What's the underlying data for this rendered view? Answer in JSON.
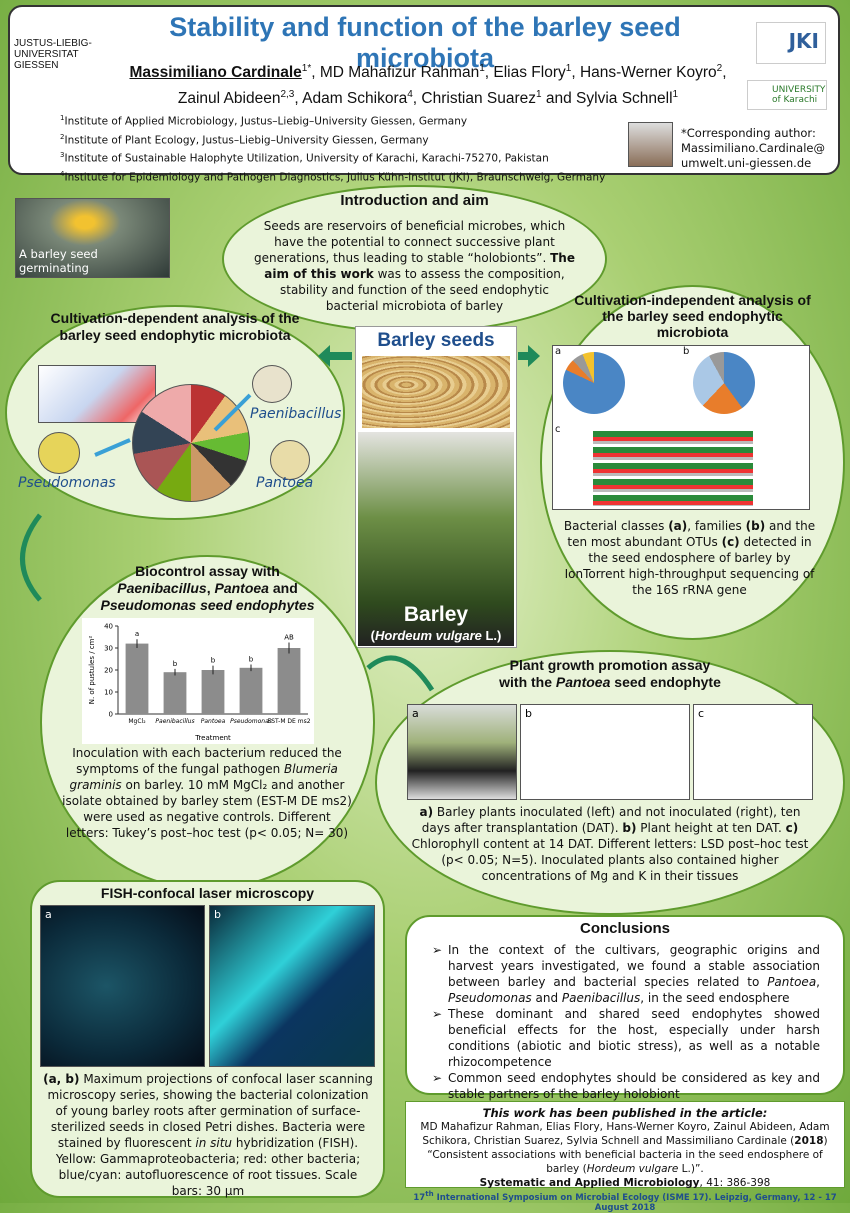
{
  "header": {
    "title": "Stability and function of the barley seed microbiota",
    "logo_left": "JUSTUS-LIEBIG-UNIVERSITAT GIESSEN",
    "logo_jki": "JKI",
    "logo_karachi": "UNIVERSITY of Karachi",
    "authors": [
      {
        "name": "Massimiliano Cardinale",
        "sup": "1*",
        "after": ", "
      },
      {
        "name": "MD Mahafizur Rahman",
        "sup": "1",
        "after": ", "
      },
      {
        "name": "Elias Flory",
        "sup": "1",
        "after": ", "
      },
      {
        "name": "Hans-Werner Koyro",
        "sup": "2",
        "after": ", "
      },
      {
        "name": "Zainul Abideen",
        "sup": "2,3",
        "after": ", "
      },
      {
        "name": "Adam Schikora",
        "sup": "4",
        "after": ", "
      },
      {
        "name": "Christian Suarez",
        "sup": "1",
        "after": " and "
      },
      {
        "name": "Sylvia Schnell",
        "sup": "1",
        "after": ""
      }
    ],
    "affiliations": [
      {
        "num": "1",
        "text": "Institute of Applied Microbiology, Justus–Liebig–University Giessen, Germany"
      },
      {
        "num": "2",
        "text": "Institute of Plant Ecology, Justus–Liebig–University Giessen, Germany"
      },
      {
        "num": "3",
        "text": "Institute of Sustainable Halophyte Utilization, University of Karachi, Karachi-75270, Pakistan"
      },
      {
        "num": "4",
        "text": "Institute for Epidemiology and Pathogen Diagnostics, Julius Kühn-Institut (JKI), Braunschweig, Germany"
      }
    ],
    "corresponding": [
      "*Corresponding author:",
      "Massimiliano.Cardinale@",
      "umwelt.uni-giessen.de"
    ]
  },
  "seed_photo_caption": "A barley seed germinating",
  "intro": {
    "title": "Introduction and aim",
    "text": "Seeds are reservoirs of beneficial microbes, which have the potential to connect successive plant generations, thus leading to stable “holobionts”.",
    "aim_bold": "The aim of this work",
    "aim": " was to assess the composition, stability and function of the seed endophytic bacterial microbiota of barley"
  },
  "cultivation_dependent": {
    "title": "Cultivation-dependent analysis of the barley seed endophytic microbiota",
    "labels": [
      "Paenibacillus",
      "Pseudomonas",
      "Pantoea"
    ]
  },
  "cultivation_independent": {
    "title": "Cultivation-independent analysis of the barley seed endophytic microbiota",
    "panels": [
      "a",
      "b",
      "c"
    ],
    "caption": [
      "Bacterial classes ",
      "(a)",
      ", families ",
      "(b)",
      " and the ten  most abundant OTUs ",
      "(c)",
      " detected in the seed endosphere of barley by IonTorrent high-throughput sequencing of the 16S rRNA gene"
    ]
  },
  "center": {
    "seeds_label": "Barley seeds",
    "plant_label": "Barley",
    "latin_open": "(",
    "latin": "Hordeum vulgare",
    "latin_close": " L.)"
  },
  "biocontrol": {
    "title": [
      "Biocontrol assay with",
      "Paenibacillus",
      ", ",
      "Pantoea",
      " and",
      "Pseudomonas",
      " seed endophytes"
    ],
    "chart": {
      "type": "bar",
      "categories": [
        "MgCl₂",
        "Paenibacillus",
        "Pantoea",
        "Pseudomonas",
        "EST-M DE ms2"
      ],
      "values": [
        32,
        19,
        20,
        21,
        30
      ],
      "errors": [
        2,
        1.5,
        2,
        1.5,
        2.5
      ],
      "letters": [
        "a",
        "b",
        "b",
        "b",
        "AB"
      ],
      "ylabel": "N. of pustules / cm²",
      "xlabel": "Treatment",
      "ylim": [
        0,
        40
      ],
      "yticks": [
        0,
        10,
        20,
        30,
        40
      ],
      "color": "#8c8c8c"
    },
    "caption": [
      "Inoculation with each bacterium reduced the symptoms of the fungal pathogen ",
      "Blumeria graminis",
      " on barley. 10 mM MgCl₂ and another isolate obtained by barley stem (EST-M DE ms2) were used as negative controls. Different letters: Tukey’s post–hoc test (p< 0.05; N= 30)"
    ]
  },
  "pgp": {
    "title": [
      "Plant growth promotion assay",
      "with the ",
      "Pantoea",
      " seed endophyte"
    ],
    "panels": [
      "a",
      "b",
      "c"
    ],
    "caption": [
      "a)",
      " Barley plants inoculated (left) and not inoculated (right), ten days after transplantation (DAT). ",
      "b)",
      " Plant height at ten DAT. ",
      "c)",
      " Chlorophyll content at 14 DAT. Different letters: LSD post–hoc test (p< 0.05; N=5). Inoculated plants also contained higher concentrations of Mg and K in their tissues"
    ]
  },
  "fish": {
    "title": "FISH-confocal laser microscopy",
    "panels": [
      "a",
      "b"
    ],
    "caption": [
      "(a, b)",
      " Maximum projections of confocal laser scanning microscopy series, showing the bacterial colonization of young barley roots after germination of surface-sterilized seeds in closed Petri dishes. Bacteria were stained by fluorescent ",
      "in situ",
      " hybridization (FISH). Yellow: Gammaproteobacteria; red: other bacteria; blue/cyan: autofluorescence of root tissues. Scale bars: 30 µm"
    ]
  },
  "conclusions": {
    "title": "Conclusions",
    "items": [
      [
        "In the context of the cultivars, geographic origins and harvest years investigated, we found a stable association between barley and bacterial species related to ",
        "Pantoea",
        ", ",
        "Pseudomonas",
        " and ",
        "Paenibacillus",
        ", in the seed endosphere"
      ],
      [
        "These dominant and shared seed endophytes showed beneficial effects for the host, especially under harsh conditions (abiotic and biotic stress), as well as a notable rhizocompetence"
      ],
      [
        "Common seed endophytes should be considered as key and stable partners of the barley holobiont"
      ]
    ]
  },
  "publication": {
    "heading": "This work has been published in the  article:",
    "text": [
      "MD Mahafizur Rahman, Elias Flory, Hans-Werner Koyro, Zainul Abideen, Adam Schikora, Christian Suarez, Sylvia Schnell and Massimiliano Cardinale (",
      "2018",
      ") “Consistent associations with beneficial bacteria in the seed endosphere of barley (",
      "Hordeum vulgare",
      " L.)”."
    ],
    "journal": "Systematic and Applied Microbiology",
    "ref": ", 41: 386-398"
  },
  "footer": {
    "sup": "th",
    "text": "17",
    "rest": " International Symposium on Microbial Ecology (ISME 17). Leipzig, Germany, 12 - 17 August 2018"
  }
}
